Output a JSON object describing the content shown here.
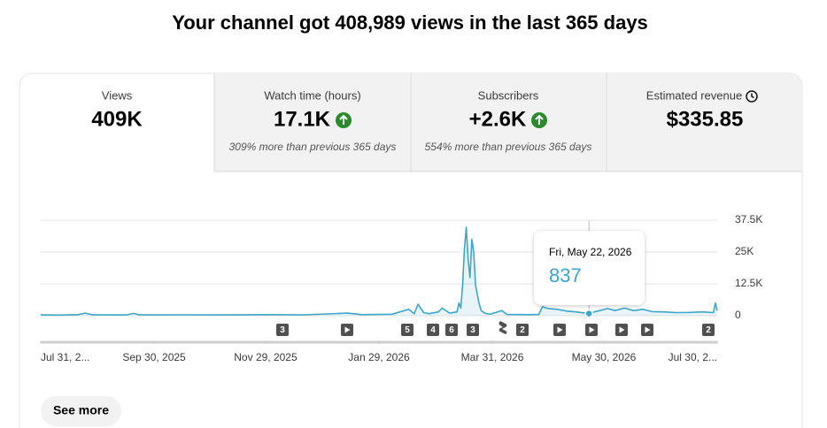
{
  "header": {
    "title": "Your channel got 408,989 views in the last 365 days"
  },
  "tabs": [
    {
      "label": "Views",
      "value": "409K"
    },
    {
      "label": "Watch time (hours)",
      "value": "17.1K",
      "note": "309% more than previous 365 days"
    },
    {
      "label": "Subscribers",
      "value": "+2.6K",
      "note": "554% more than previous 365 days"
    },
    {
      "label": "Estimated revenue",
      "value": "$335.85"
    }
  ],
  "chart_data": {
    "type": "line",
    "color": "#3ea6c8",
    "x": [
      "2025-07-31",
      "2025-08-10",
      "2025-08-20",
      "2025-08-24",
      "2025-08-28",
      "2025-09-15",
      "2025-09-19",
      "2025-09-22",
      "2025-10-15",
      "2025-11-10",
      "2025-12-01",
      "2025-12-20",
      "2026-01-12",
      "2026-01-20",
      "2026-02-05",
      "2026-02-14",
      "2026-02-17",
      "2026-02-19",
      "2026-02-22",
      "2026-02-25",
      "2026-03-02",
      "2026-03-04",
      "2026-03-08",
      "2026-03-12",
      "2026-03-13",
      "2026-03-14",
      "2026-03-15",
      "2026-03-16",
      "2026-03-17",
      "2026-03-18",
      "2026-03-19",
      "2026-03-20",
      "2026-03-21",
      "2026-03-22",
      "2026-03-23",
      "2026-03-24",
      "2026-03-25",
      "2026-03-27",
      "2026-03-30",
      "2026-04-05",
      "2026-04-08",
      "2026-04-20",
      "2026-04-25",
      "2026-04-27",
      "2026-04-30",
      "2026-05-05",
      "2026-05-10",
      "2026-05-15",
      "2026-05-22",
      "2026-05-25",
      "2026-06-01",
      "2026-06-05",
      "2026-06-10",
      "2026-06-15",
      "2026-06-20",
      "2026-06-25",
      "2026-07-01",
      "2026-07-08",
      "2026-07-15",
      "2026-07-22",
      "2026-07-28",
      "2026-07-29",
      "2026-07-30"
    ],
    "values": [
      300,
      250,
      400,
      1000,
      300,
      300,
      900,
      300,
      350,
      300,
      400,
      350,
      1000,
      400,
      600,
      2500,
      800,
      4500,
      1200,
      800,
      1500,
      3000,
      1000,
      1500,
      5000,
      3000,
      12000,
      26000,
      34700,
      22000,
      15000,
      30000,
      25000,
      12000,
      8000,
      4500,
      2000,
      1000,
      600,
      2000,
      500,
      400,
      500,
      3500,
      2800,
      2500,
      1800,
      1500,
      837,
      1500,
      2800,
      2000,
      3000,
      2000,
      2500,
      1600,
      1500,
      1200,
      1300,
      1500,
      1200,
      5000,
      2000
    ],
    "xlim": [
      "2025-07-31",
      "2026-07-30"
    ],
    "xticks": [
      {
        "value": "2025-07-31",
        "label": "Jul 31, 2..."
      },
      {
        "value": "2025-09-30",
        "label": "Sep 30, 2025"
      },
      {
        "value": "2025-11-29",
        "label": "Nov 29, 2025"
      },
      {
        "value": "2026-01-29",
        "label": "Jan 29, 2026"
      },
      {
        "value": "2026-03-31",
        "label": "Mar 31, 2026"
      },
      {
        "value": "2026-05-30",
        "label": "May 30, 2026"
      },
      {
        "value": "2026-07-30",
        "label": "Jul 30, 2..."
      }
    ],
    "ylim": [
      0,
      37500
    ],
    "yticks": [
      0,
      {
        "value": 12500,
        "label": "12.5K"
      },
      {
        "value": 25000,
        "label": "25K"
      },
      {
        "value": 37500,
        "label": "37.5K"
      }
    ],
    "grid": true
  },
  "tooltip": {
    "date": "Fri, May 22, 2026",
    "value": 837
  },
  "markers": [
    "3",
    "5",
    "4",
    "6",
    "3",
    "2",
    "2"
  ],
  "button": "See more"
}
